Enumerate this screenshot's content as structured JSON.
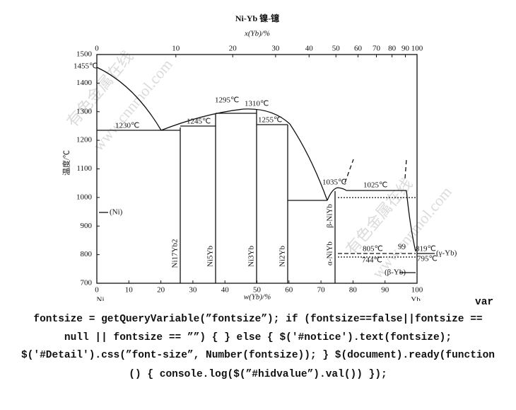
{
  "title": "Ni-Yb  镍-镱",
  "top_axis": {
    "label": "x(Yb)/%",
    "ticks": [
      0,
      10,
      20,
      30,
      40,
      50,
      60,
      70,
      80,
      90,
      100
    ]
  },
  "bottom_axis": {
    "label": "w(Yb)/%",
    "ticks": [
      0,
      10,
      20,
      30,
      40,
      50,
      60,
      70,
      80,
      90,
      100
    ]
  },
  "y_axis": {
    "label": "温度/℃",
    "ticks": [
      1500,
      1400,
      1300,
      1200,
      1100,
      1000,
      900,
      800,
      700
    ]
  },
  "element_labels": [
    "Ni",
    "Yb"
  ],
  "annotations": [
    "1455℃",
    "1230℃",
    "1245℃",
    "1295℃",
    "1310℃",
    "1255℃",
    "1035℃",
    "1025℃",
    "805℃",
    "744℃",
    "99",
    "819℃",
    "795℃",
    "(Ni)",
    "(γ-Yb)",
    "(β-Yb)"
  ],
  "phases": [
    "Ni17Yb2",
    "Ni5Yb",
    "Ni3Yb",
    "Ni2Yb",
    "α-NiYb",
    "β-NiYb"
  ],
  "watermarks": [
    "有色金属在线",
    "www.cnnmol.com",
    "有色金属在线",
    "www.cnnmol.com"
  ],
  "code": [
    "var",
    "fontsize = getQueryVariable(”fontsize”); if (fontsize==false||fontsize ==",
    "null || fontsize == ””) { } else { $('#notice').text(fontsize);",
    "$('#Detail').css(”font-size”, Number(fontsize)); } $(document).ready(function",
    "() { console.log($(”#hidvalue”).val()) });"
  ]
}
